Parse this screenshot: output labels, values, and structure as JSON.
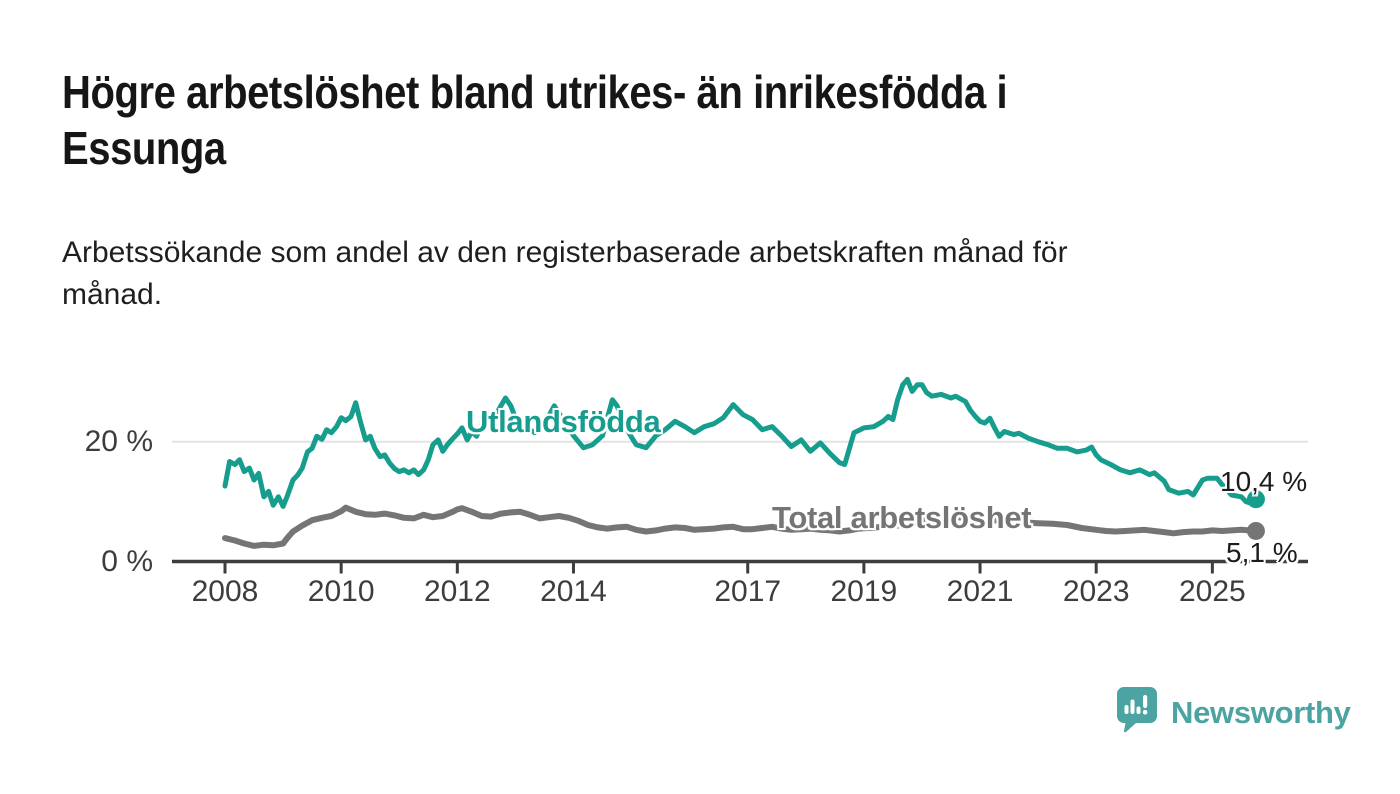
{
  "header": {
    "title_line1": "Högre arbetslöshet bland utrikes- än inrikesfödda i",
    "title_line2": "Essunga",
    "subtitle_line1": "Arbetssökande som andel av den registerbaserade arbetskraften månad för",
    "subtitle_line2": "månad."
  },
  "chart_data": {
    "type": "line",
    "title": "Högre arbetslöshet bland utrikes- än inrikesfödda i Essunga",
    "subtitle": "Arbetssökande som andel av den registerbaserade arbetskraften månad för månad.",
    "xlabel": "",
    "ylabel": "",
    "ylim": [
      0,
      31
    ],
    "xlim": [
      2007.1,
      2026.6
    ],
    "grid": "horizontal gridline at 20% only",
    "legend_position": "labels drawn on lines",
    "yticks": [
      {
        "value": 0,
        "label": "0 %"
      },
      {
        "value": 20,
        "label": "20 %"
      }
    ],
    "xticks": [
      {
        "year": 2008,
        "label": "2008"
      },
      {
        "year": 2010,
        "label": "2010"
      },
      {
        "year": 2012,
        "label": "2012"
      },
      {
        "year": 2014,
        "label": "2014"
      },
      {
        "year": 2017,
        "label": "2017"
      },
      {
        "year": 2019,
        "label": "2019"
      },
      {
        "year": 2021,
        "label": "2021"
      },
      {
        "year": 2023,
        "label": "2023"
      },
      {
        "year": 2025,
        "label": "2025"
      }
    ],
    "series": [
      {
        "name": "Utlandsfödda",
        "color": "#169d8e",
        "line_width": 5,
        "end_value": 10.4,
        "end_label": "10,4 %",
        "points": [
          [
            2008.0,
            12.6
          ],
          [
            2008.08,
            16.7
          ],
          [
            2008.17,
            16.2
          ],
          [
            2008.25,
            17.0
          ],
          [
            2008.33,
            15.0
          ],
          [
            2008.42,
            15.6
          ],
          [
            2008.5,
            13.6
          ],
          [
            2008.58,
            14.7
          ],
          [
            2008.67,
            10.8
          ],
          [
            2008.75,
            11.7
          ],
          [
            2008.83,
            9.4
          ],
          [
            2008.92,
            10.8
          ],
          [
            2009.0,
            9.2
          ],
          [
            2009.08,
            11.1
          ],
          [
            2009.17,
            13.6
          ],
          [
            2009.25,
            14.4
          ],
          [
            2009.33,
            15.6
          ],
          [
            2009.42,
            18.3
          ],
          [
            2009.5,
            18.9
          ],
          [
            2009.58,
            20.9
          ],
          [
            2009.67,
            20.4
          ],
          [
            2009.75,
            22.0
          ],
          [
            2009.83,
            21.5
          ],
          [
            2009.92,
            22.5
          ],
          [
            2010.0,
            24.0
          ],
          [
            2010.08,
            23.5
          ],
          [
            2010.17,
            24.2
          ],
          [
            2010.25,
            26.5
          ],
          [
            2010.33,
            23.4
          ],
          [
            2010.42,
            20.3
          ],
          [
            2010.5,
            20.9
          ],
          [
            2010.58,
            18.9
          ],
          [
            2010.67,
            17.5
          ],
          [
            2010.75,
            17.8
          ],
          [
            2010.83,
            16.5
          ],
          [
            2010.92,
            15.5
          ],
          [
            2011.0,
            15.0
          ],
          [
            2011.08,
            15.3
          ],
          [
            2011.17,
            14.8
          ],
          [
            2011.25,
            15.3
          ],
          [
            2011.33,
            14.5
          ],
          [
            2011.42,
            15.3
          ],
          [
            2011.5,
            17.0
          ],
          [
            2011.58,
            19.5
          ],
          [
            2011.67,
            20.3
          ],
          [
            2011.75,
            18.4
          ],
          [
            2011.83,
            19.5
          ],
          [
            2011.92,
            20.5
          ],
          [
            2012.0,
            21.3
          ],
          [
            2012.08,
            22.3
          ],
          [
            2012.17,
            20.3
          ],
          [
            2012.25,
            21.7
          ],
          [
            2012.33,
            20.9
          ],
          [
            2012.42,
            22.8
          ],
          [
            2012.5,
            23.4
          ],
          [
            2012.58,
            23.4
          ],
          [
            2012.67,
            24.5
          ],
          [
            2012.75,
            26.0
          ],
          [
            2012.83,
            27.3
          ],
          [
            2012.92,
            26.0
          ],
          [
            2013.0,
            24.0
          ],
          [
            2013.17,
            22.5
          ],
          [
            2013.33,
            21.5
          ],
          [
            2013.5,
            23.0
          ],
          [
            2013.67,
            26.0
          ],
          [
            2013.83,
            23.5
          ],
          [
            2014.0,
            21.0
          ],
          [
            2014.17,
            19.0
          ],
          [
            2014.33,
            19.5
          ],
          [
            2014.5,
            21.0
          ],
          [
            2014.67,
            27.0
          ],
          [
            2014.75,
            26.0
          ],
          [
            2014.92,
            22.0
          ],
          [
            2015.08,
            19.5
          ],
          [
            2015.25,
            19.0
          ],
          [
            2015.42,
            21.0
          ],
          [
            2015.58,
            22.0
          ],
          [
            2015.75,
            23.4
          ],
          [
            2015.92,
            22.5
          ],
          [
            2016.08,
            21.5
          ],
          [
            2016.25,
            22.5
          ],
          [
            2016.42,
            23.0
          ],
          [
            2016.58,
            24.0
          ],
          [
            2016.75,
            26.2
          ],
          [
            2016.92,
            24.5
          ],
          [
            2017.08,
            23.7
          ],
          [
            2017.25,
            22.0
          ],
          [
            2017.42,
            22.5
          ],
          [
            2017.58,
            21.0
          ],
          [
            2017.75,
            19.2
          ],
          [
            2017.92,
            20.3
          ],
          [
            2018.08,
            18.4
          ],
          [
            2018.25,
            19.8
          ],
          [
            2018.42,
            18.0
          ],
          [
            2018.58,
            16.5
          ],
          [
            2018.67,
            16.2
          ],
          [
            2018.83,
            21.5
          ],
          [
            2019.0,
            22.3
          ],
          [
            2019.17,
            22.5
          ],
          [
            2019.33,
            23.4
          ],
          [
            2019.42,
            24.2
          ],
          [
            2019.5,
            23.7
          ],
          [
            2019.58,
            27.0
          ],
          [
            2019.67,
            29.5
          ],
          [
            2019.75,
            30.4
          ],
          [
            2019.83,
            28.4
          ],
          [
            2019.92,
            29.5
          ],
          [
            2020.0,
            29.5
          ],
          [
            2020.08,
            28.2
          ],
          [
            2020.17,
            27.6
          ],
          [
            2020.33,
            27.9
          ],
          [
            2020.5,
            27.3
          ],
          [
            2020.58,
            27.6
          ],
          [
            2020.75,
            26.7
          ],
          [
            2020.83,
            25.3
          ],
          [
            2020.92,
            24.2
          ],
          [
            2021.0,
            23.4
          ],
          [
            2021.08,
            23.1
          ],
          [
            2021.17,
            23.9
          ],
          [
            2021.25,
            22.3
          ],
          [
            2021.33,
            20.9
          ],
          [
            2021.42,
            21.7
          ],
          [
            2021.58,
            21.2
          ],
          [
            2021.67,
            21.4
          ],
          [
            2021.83,
            20.6
          ],
          [
            2022.0,
            20.0
          ],
          [
            2022.17,
            19.5
          ],
          [
            2022.33,
            18.9
          ],
          [
            2022.5,
            18.9
          ],
          [
            2022.67,
            18.3
          ],
          [
            2022.83,
            18.6
          ],
          [
            2022.92,
            19.1
          ],
          [
            2023.0,
            17.8
          ],
          [
            2023.08,
            17.0
          ],
          [
            2023.25,
            16.2
          ],
          [
            2023.42,
            15.3
          ],
          [
            2023.58,
            14.8
          ],
          [
            2023.75,
            15.3
          ],
          [
            2023.92,
            14.5
          ],
          [
            2024.0,
            14.8
          ],
          [
            2024.17,
            13.4
          ],
          [
            2024.25,
            12.0
          ],
          [
            2024.42,
            11.4
          ],
          [
            2024.58,
            11.7
          ],
          [
            2024.67,
            11.1
          ],
          [
            2024.83,
            13.6
          ],
          [
            2024.92,
            13.9
          ],
          [
            2025.08,
            13.9
          ],
          [
            2025.17,
            12.8
          ],
          [
            2025.25,
            12.0
          ],
          [
            2025.33,
            11.1
          ],
          [
            2025.5,
            10.8
          ],
          [
            2025.58,
            10.0
          ],
          [
            2025.67,
            9.7
          ],
          [
            2025.75,
            10.4
          ]
        ]
      },
      {
        "name": "Total arbetslöshet",
        "color": "#757575",
        "line_width": 6,
        "end_value": 5.1,
        "end_label": "5,1 %",
        "points": [
          [
            2008.0,
            3.9
          ],
          [
            2008.17,
            3.5
          ],
          [
            2008.33,
            3.0
          ],
          [
            2008.5,
            2.6
          ],
          [
            2008.67,
            2.8
          ],
          [
            2008.83,
            2.7
          ],
          [
            2009.0,
            3.0
          ],
          [
            2009.08,
            4.0
          ],
          [
            2009.17,
            5.0
          ],
          [
            2009.33,
            6.0
          ],
          [
            2009.5,
            6.9
          ],
          [
            2009.67,
            7.3
          ],
          [
            2009.83,
            7.6
          ],
          [
            2010.0,
            8.4
          ],
          [
            2010.08,
            9.0
          ],
          [
            2010.25,
            8.3
          ],
          [
            2010.42,
            7.9
          ],
          [
            2010.58,
            7.8
          ],
          [
            2010.75,
            8.0
          ],
          [
            2010.92,
            7.7
          ],
          [
            2011.08,
            7.3
          ],
          [
            2011.25,
            7.2
          ],
          [
            2011.42,
            7.8
          ],
          [
            2011.58,
            7.4
          ],
          [
            2011.75,
            7.6
          ],
          [
            2011.92,
            8.3
          ],
          [
            2012.0,
            8.7
          ],
          [
            2012.08,
            8.9
          ],
          [
            2012.25,
            8.3
          ],
          [
            2012.42,
            7.6
          ],
          [
            2012.58,
            7.5
          ],
          [
            2012.75,
            8.0
          ],
          [
            2012.92,
            8.2
          ],
          [
            2013.08,
            8.3
          ],
          [
            2013.25,
            7.8
          ],
          [
            2013.42,
            7.2
          ],
          [
            2013.58,
            7.4
          ],
          [
            2013.75,
            7.6
          ],
          [
            2013.92,
            7.3
          ],
          [
            2014.08,
            6.8
          ],
          [
            2014.25,
            6.1
          ],
          [
            2014.42,
            5.7
          ],
          [
            2014.58,
            5.5
          ],
          [
            2014.75,
            5.7
          ],
          [
            2014.92,
            5.8
          ],
          [
            2015.08,
            5.3
          ],
          [
            2015.25,
            5.0
          ],
          [
            2015.42,
            5.2
          ],
          [
            2015.58,
            5.5
          ],
          [
            2015.75,
            5.7
          ],
          [
            2015.92,
            5.6
          ],
          [
            2016.08,
            5.3
          ],
          [
            2016.25,
            5.4
          ],
          [
            2016.42,
            5.5
          ],
          [
            2016.58,
            5.7
          ],
          [
            2016.75,
            5.8
          ],
          [
            2016.92,
            5.4
          ],
          [
            2017.08,
            5.4
          ],
          [
            2017.25,
            5.6
          ],
          [
            2017.42,
            5.8
          ],
          [
            2017.58,
            5.5
          ],
          [
            2017.75,
            5.3
          ],
          [
            2017.92,
            5.4
          ],
          [
            2018.08,
            5.5
          ],
          [
            2018.25,
            5.3
          ],
          [
            2018.42,
            5.2
          ],
          [
            2018.58,
            5.0
          ],
          [
            2018.75,
            5.2
          ],
          [
            2018.92,
            5.5
          ],
          [
            2019.08,
            5.6
          ],
          [
            2019.33,
            5.8
          ],
          [
            2019.58,
            6.0
          ],
          [
            2019.83,
            6.4
          ],
          [
            2020.08,
            6.9
          ],
          [
            2020.33,
            7.2
          ],
          [
            2020.58,
            7.4
          ],
          [
            2020.83,
            7.3
          ],
          [
            2021.08,
            7.0
          ],
          [
            2021.33,
            6.8
          ],
          [
            2021.58,
            6.6
          ],
          [
            2021.83,
            6.5
          ],
          [
            2022.0,
            6.4
          ],
          [
            2022.25,
            6.3
          ],
          [
            2022.5,
            6.1
          ],
          [
            2022.75,
            5.6
          ],
          [
            2023.0,
            5.3
          ],
          [
            2023.17,
            5.1
          ],
          [
            2023.33,
            5.0
          ],
          [
            2023.5,
            5.1
          ],
          [
            2023.67,
            5.2
          ],
          [
            2023.83,
            5.3
          ],
          [
            2024.0,
            5.1
          ],
          [
            2024.17,
            4.9
          ],
          [
            2024.33,
            4.7
          ],
          [
            2024.5,
            4.9
          ],
          [
            2024.67,
            5.0
          ],
          [
            2024.83,
            5.0
          ],
          [
            2025.0,
            5.2
          ],
          [
            2025.17,
            5.1
          ],
          [
            2025.33,
            5.2
          ],
          [
            2025.5,
            5.3
          ],
          [
            2025.75,
            5.1
          ]
        ]
      }
    ]
  },
  "branding": {
    "logo_text": "Newsworthy",
    "logo_color": "#4ba3a2",
    "logo_icon": "bar-chart-speech-bubble-icon"
  },
  "colors": {
    "background": "#ffffff",
    "axis": "#3d3d3d",
    "gridline": "#e3e3e3",
    "title": "#161616",
    "series_utlandsfodda": "#169d8e",
    "series_total": "#757575"
  }
}
